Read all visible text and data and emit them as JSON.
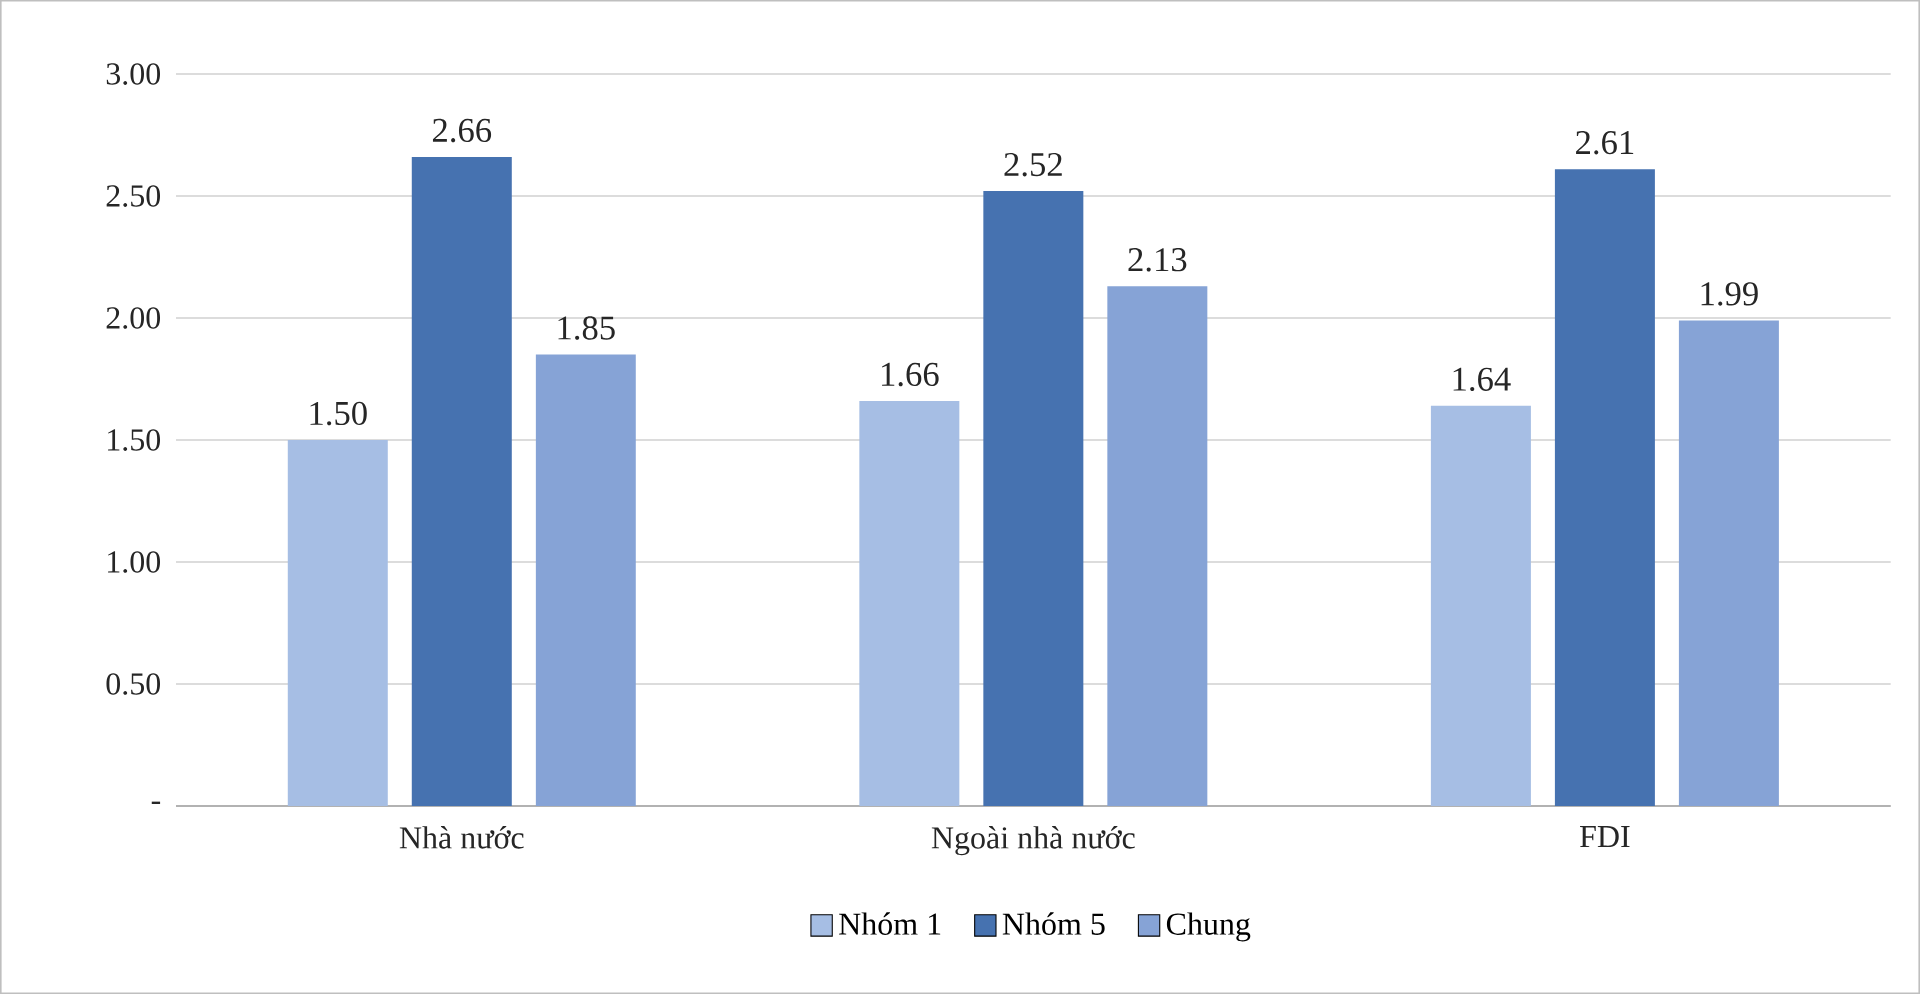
{
  "chart_data": {
    "type": "bar",
    "categories": [
      "Nhà nước",
      "Ngoài nhà nước",
      "FDI"
    ],
    "series": [
      {
        "name": "Nhóm 1",
        "color": "#a6bee4",
        "values": [
          1.5,
          1.66,
          1.64
        ],
        "value_labels": [
          "1.50",
          "1.66",
          "1.64"
        ]
      },
      {
        "name": "Nhóm 5",
        "color": "#4672b0",
        "values": [
          2.66,
          2.52,
          2.61
        ],
        "value_labels": [
          "2.66",
          "2.52",
          "2.61"
        ]
      },
      {
        "name": "Chung",
        "color": "#86a3d6",
        "values": [
          1.85,
          2.13,
          1.99
        ],
        "value_labels": [
          "1.85",
          "2.13",
          "1.99"
        ]
      }
    ],
    "ylim": [
      0,
      3
    ],
    "yticks": [
      {
        "value": 0,
        "label": "-"
      },
      {
        "value": 0.5,
        "label": "0.50"
      },
      {
        "value": 1,
        "label": "1.00"
      },
      {
        "value": 1.5,
        "label": "1.50"
      },
      {
        "value": 2,
        "label": "2.00"
      },
      {
        "value": 2.5,
        "label": "2.50"
      },
      {
        "value": 3,
        "label": "3.00"
      }
    ],
    "grid": "y",
    "legend": "bottom"
  }
}
